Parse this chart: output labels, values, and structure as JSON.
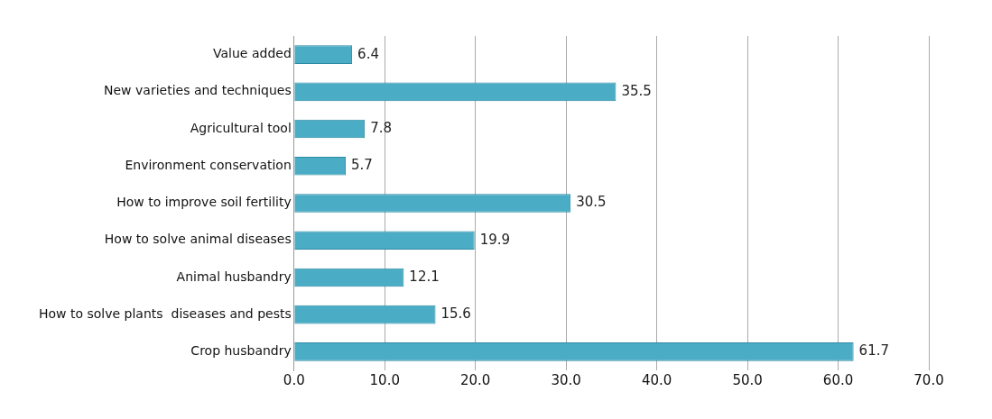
{
  "chart_data": {
    "type": "bar",
    "orientation": "horizontal",
    "categories": [
      "Value added",
      "New varieties and techniques",
      "Agricultural tool",
      "Environment conservation",
      "How to improve soil fertility",
      "How to solve animal diseases",
      "Animal husbandry",
      "How to solve plants  diseases and pests",
      "Crop husbandry"
    ],
    "values": [
      6.4,
      35.5,
      7.8,
      5.7,
      30.5,
      19.9,
      12.1,
      15.6,
      61.7
    ],
    "color": "#4bacc6",
    "xlim": [
      0,
      70
    ],
    "xticks": [
      {
        "value": 0,
        "label": "0.0"
      },
      {
        "value": 10,
        "label": "10.0"
      },
      {
        "value": 20,
        "label": "20.0"
      },
      {
        "value": 30,
        "label": "30.0"
      },
      {
        "value": 40,
        "label": "40.0"
      },
      {
        "value": 50,
        "label": "50.0"
      },
      {
        "value": 60,
        "label": "60.0"
      },
      {
        "value": 70,
        "label": "70.0"
      }
    ],
    "grid": "x",
    "data_labels": true,
    "legend": false
  }
}
